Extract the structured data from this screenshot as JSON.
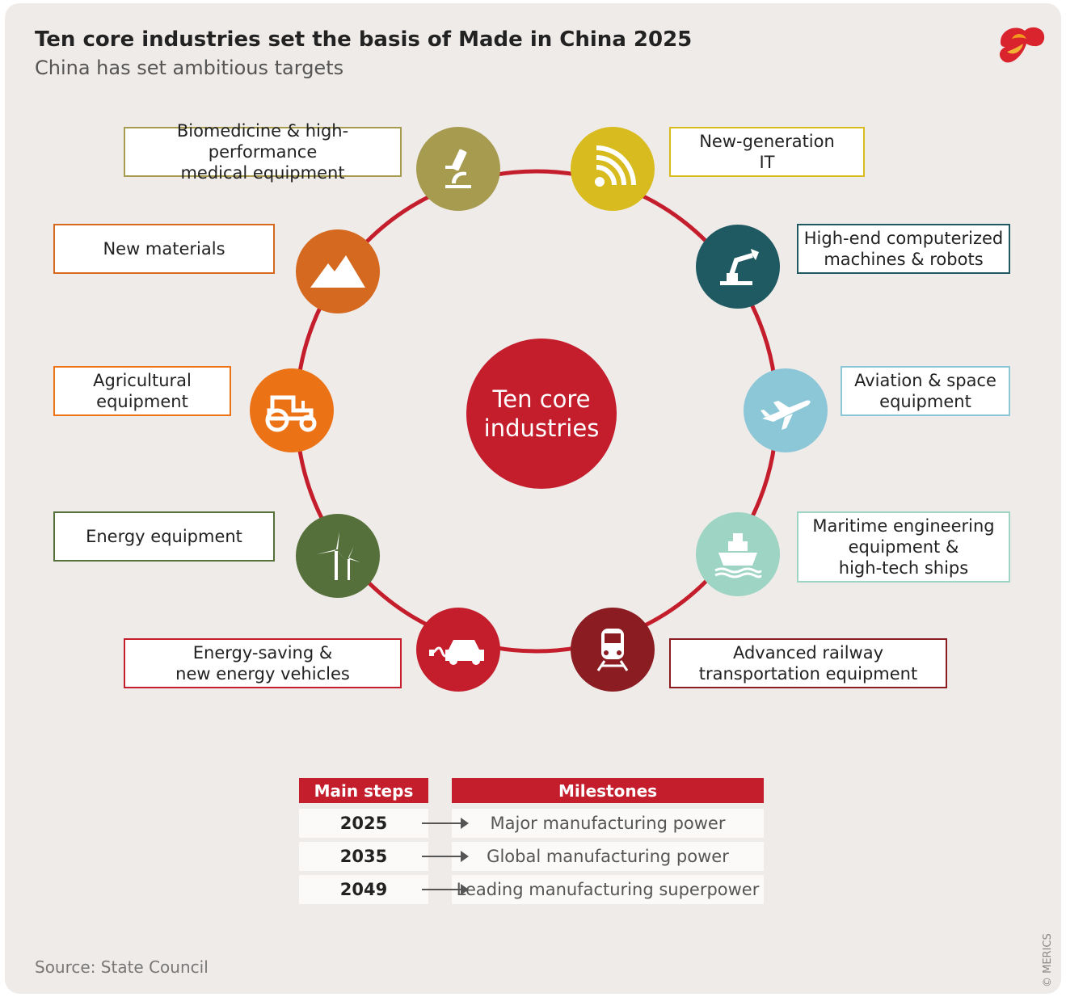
{
  "header": {
    "title": "Ten core industries set the basis of Made in China 2025",
    "subtitle": "China has set ambitious targets"
  },
  "hub": {
    "line1": "Ten core",
    "line2": "industries"
  },
  "industries": [
    {
      "line1": "Biomedicine & high-performance",
      "line2": "medical equipment",
      "icon": "microscope-icon",
      "color": "#a79b4f"
    },
    {
      "line1": "New-generation",
      "line2": "IT",
      "icon": "wifi-signal-icon",
      "color": "#d8bb1f"
    },
    {
      "line1": "High-end computerized",
      "line2": "machines & robots",
      "icon": "robot-arm-icon",
      "color": "#1f5a63"
    },
    {
      "line1": "Aviation & space",
      "line2": "equipment",
      "icon": "airplane-icon",
      "color": "#8bc7d6"
    },
    {
      "line1": "Maritime engineering",
      "line2": "equipment &",
      "line3": "high-tech ships",
      "icon": "ship-icon",
      "color": "#9ed4c4"
    },
    {
      "line1": "Advanced railway",
      "line2": "transportation equipment",
      "icon": "train-icon",
      "color": "#8a1c22"
    },
    {
      "line1": "Energy-saving &",
      "line2": "new energy vehicles",
      "icon": "electric-car-icon",
      "color": "#c41e2d"
    },
    {
      "line1": "Energy equipment",
      "icon": "wind-turbine-icon",
      "color": "#55703a"
    },
    {
      "line1": "Agricultural",
      "line2": "equipment",
      "icon": "tractor-icon",
      "color": "#ec7216"
    },
    {
      "line1": "New materials",
      "icon": "mountain-icon",
      "color": "#d4691f"
    }
  ],
  "table": {
    "headers": {
      "steps": "Main steps",
      "milestones": "Milestones"
    },
    "rows": [
      {
        "year": "2025",
        "milestone": "Major manufacturing power"
      },
      {
        "year": "2035",
        "milestone": "Global manufacturing power"
      },
      {
        "year": "2049",
        "milestone": "Leading manufacturing superpower"
      }
    ]
  },
  "footer": {
    "source": "Source: State Council",
    "copyright": "© MERICS"
  },
  "colors": {
    "accent": "#c41e2d",
    "background": "#efebe9"
  }
}
